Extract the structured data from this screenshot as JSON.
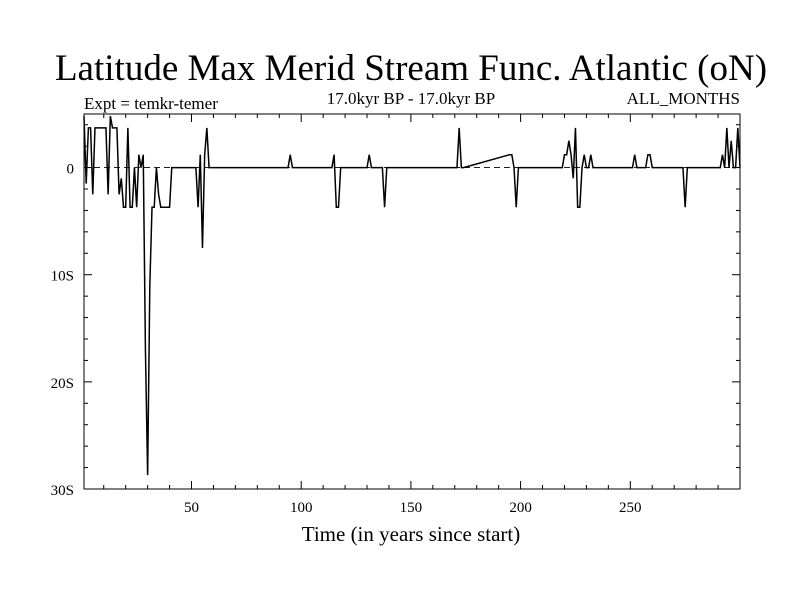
{
  "chart_data": {
    "type": "line",
    "title": "Latitude Max Merid Stream Func. Atlantic (oN)",
    "subtitle_left": "Expt = temkr-temer",
    "subtitle_center": "17.0kyr BP - 17.0kyr BP",
    "subtitle_right": "ALL_MONTHS",
    "xlabel": "Time (in years since start)",
    "ylabel": "",
    "xlim": [
      1,
      300
    ],
    "ylim": [
      -30,
      5
    ],
    "x_ticks": [
      50,
      100,
      150,
      200,
      250
    ],
    "x_tick_labels": [
      "50",
      "100",
      "150",
      "200",
      "250"
    ],
    "y_ticks": [
      0,
      -10,
      -20,
      -30
    ],
    "y_tick_labels": [
      "0",
      "10S",
      "20S",
      "30S"
    ],
    "zero_line": "dashed",
    "grid": false,
    "line_color": "#000000",
    "series": [
      {
        "x": [
          1,
          2,
          3,
          4,
          5,
          6,
          7,
          8,
          9,
          10,
          11,
          12,
          13,
          14,
          15,
          16,
          17,
          18,
          19,
          20,
          21,
          22,
          23,
          24,
          25,
          26,
          27,
          28,
          29,
          30,
          31,
          32,
          33,
          34,
          35,
          36,
          37,
          38,
          39,
          40,
          41,
          42,
          43,
          44,
          45,
          46,
          47,
          52,
          53,
          54,
          55,
          56,
          57,
          58,
          59,
          60,
          61,
          94,
          95,
          96,
          114,
          115,
          116,
          117,
          118,
          130,
          131,
          132,
          137,
          138,
          139,
          171,
          172,
          173,
          174,
          195,
          196,
          197,
          198,
          199,
          200,
          219,
          220,
          221,
          222,
          223,
          224,
          225,
          226,
          227,
          228,
          229,
          230,
          231,
          232,
          233,
          251,
          252,
          253,
          257,
          258,
          259,
          260,
          274,
          275,
          276,
          291,
          292,
          293,
          294,
          295,
          296,
          297,
          298,
          299,
          300
        ],
        "values": [
          4.8,
          -1.5,
          3.7,
          3.7,
          -2.5,
          3.7,
          3.7,
          3.7,
          3.7,
          3.7,
          3.7,
          -2.5,
          4.8,
          3.7,
          3.7,
          3.7,
          -2.5,
          -1.0,
          -3.7,
          -3.7,
          3.7,
          -3.7,
          -3.7,
          0,
          -3.7,
          1.2,
          0,
          1.2,
          -17.0,
          -28.7,
          -11.0,
          -3.7,
          -3.7,
          0,
          -2.5,
          -3.7,
          -3.7,
          -3.7,
          -3.7,
          -3.7,
          0,
          0,
          0,
          0,
          0,
          0,
          0,
          0,
          -3.7,
          1.2,
          -7.5,
          1.2,
          3.7,
          0,
          0,
          0,
          0,
          0,
          1.2,
          0,
          0,
          1.2,
          -3.7,
          -3.7,
          0,
          0,
          1.2,
          0,
          0,
          -3.7,
          0,
          0,
          3.7,
          0,
          0,
          1.2,
          1.2,
          0,
          -3.7,
          0,
          0,
          0,
          1.2,
          1.2,
          2.5,
          1.2,
          -1.0,
          3.7,
          -3.7,
          -3.7,
          0,
          1.2,
          0,
          0,
          1.2,
          0,
          0,
          1.2,
          0,
          0,
          1.2,
          1.2,
          0,
          0,
          -3.7,
          0,
          0,
          1.2,
          0,
          3.7,
          0,
          2.5,
          0,
          0,
          3.7,
          0
        ]
      }
    ]
  }
}
